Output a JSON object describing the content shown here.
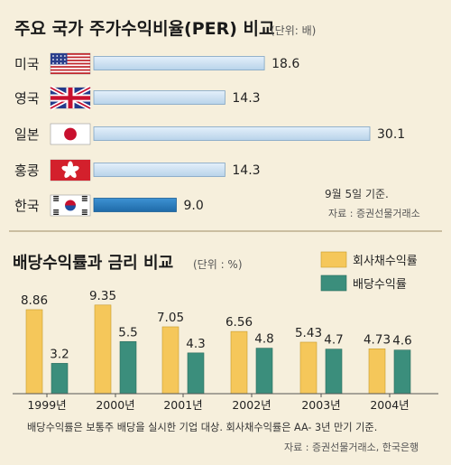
{
  "chart_data": [
    {
      "type": "bar",
      "orientation": "horizontal",
      "title": "주요 국가 주가수익비율(PER) 비교",
      "unit_note": "(단위: 배)",
      "categories": [
        "미국",
        "영국",
        "일본",
        "홍콩",
        "한국"
      ],
      "flags": [
        "us-flag",
        "uk-flag",
        "japan-flag",
        "hongkong-flag",
        "korea-flag"
      ],
      "values": [
        18.6,
        14.3,
        30.1,
        14.3,
        9.0
      ],
      "value_labels": [
        "18.6",
        "14.3",
        "30.1",
        "14.3",
        "9.0"
      ],
      "bar_colors": [
        "#c9dff2",
        "#c9dff2",
        "#c9dff2",
        "#c9dff2",
        "#2c7fc1"
      ],
      "note": "9월 5일 기준.",
      "source": "자료 : 증권선물거래소"
    },
    {
      "type": "bar",
      "title": "배당수익률과 금리 비교",
      "unit_note": "(단위 : %)",
      "categories": [
        "1999년",
        "2000년",
        "2001년",
        "2002년",
        "2003년",
        "2004년"
      ],
      "legend_position": "top-right",
      "series": [
        {
          "name": "회사채수익률",
          "color": "#f5c75a",
          "values": [
            8.86,
            9.35,
            7.05,
            6.56,
            5.43,
            4.73
          ],
          "labels": [
            "8.86",
            "9.35",
            "7.05",
            "6.56",
            "5.43",
            "4.73"
          ]
        },
        {
          "name": "배당수익률",
          "color": "#3b8e7c",
          "values": [
            3.2,
            5.5,
            4.3,
            4.8,
            4.7,
            4.6
          ],
          "labels": [
            "3.2",
            "5.5",
            "4.3",
            "4.8",
            "4.7",
            "4.6"
          ]
        }
      ],
      "footnote": "배당수익률은 보통주 배당을 실시한 기업 대상. 회사채수익률은 AA- 3년 만기 기준.",
      "source": "자료 : 증권선물거래소, 한국은행"
    }
  ]
}
